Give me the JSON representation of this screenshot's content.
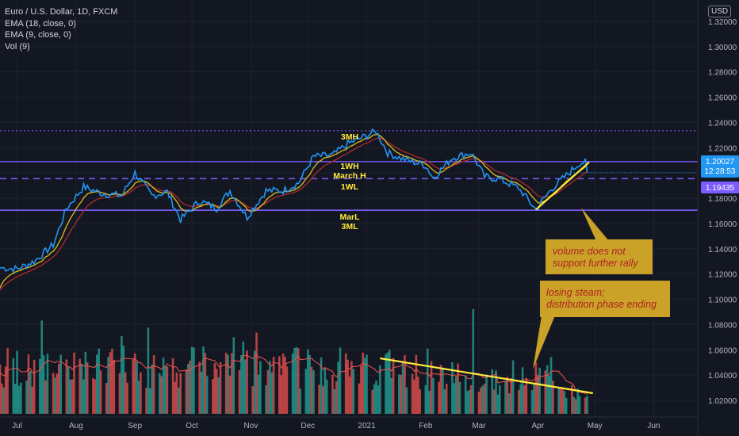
{
  "legend": {
    "symbol": "Euro / U.S. Dollar, 1D, FXCM",
    "ema18": "EMA (18, close, 0)",
    "ema9": "EMA (9, close, 0)",
    "vol": "Vol (9)"
  },
  "currency_button": "USD",
  "price_badges": {
    "last_price": "1.20027",
    "countdown": "12:28:53",
    "level": "1.19435"
  },
  "annotations": {
    "m3h": "3MH",
    "w1h": "1WH",
    "march_h": "March H",
    "w1l": "1WL",
    "marl": "MarL",
    "m3l": "3ML"
  },
  "callouts": {
    "volume": [
      "volume does not",
      "support further rally"
    ],
    "steam": [
      "losing steam;",
      "distribution phase ending"
    ]
  },
  "colors": {
    "background": "#131722",
    "price_line": "#2196f3",
    "ema9": "#d4b21e",
    "ema18": "#a52a2a",
    "level_line": "#7b5cff",
    "trend_line": "#ffeb3b",
    "annotation_text": "#ffeb3b",
    "callout_box": "#c9a227",
    "callout_text": "#b22222",
    "vol_up": "#26a69a",
    "vol_down": "#ef5350"
  },
  "chart_data": {
    "type": "line",
    "yticks": [
      "1.32000",
      "1.30000",
      "1.28000",
      "1.26000",
      "1.24000",
      "1.22000",
      "1.20000",
      "1.18000",
      "1.16000",
      "1.14000",
      "1.12000",
      "1.10000",
      "1.08000",
      "1.06000",
      "1.04000",
      "1.02000"
    ],
    "xticks": [
      "Jul",
      "Aug",
      "Sep",
      "Oct",
      "Nov",
      "Dec",
      "2021",
      "Feb",
      "Mar",
      "Apr",
      "May",
      "Jun"
    ],
    "ylim": [
      1.012,
      1.327
    ],
    "series": [
      {
        "name": "",
        "values": [
          [
            "2020-06-22",
            1.125
          ],
          [
            "2020-07-01",
            1.124
          ],
          [
            "2020-07-10",
            1.13
          ],
          [
            "2020-07-20",
            1.143
          ],
          [
            "2020-07-27",
            1.172
          ],
          [
            "2020-08-05",
            1.189
          ],
          [
            "2020-08-14",
            1.184
          ],
          [
            "2020-08-25",
            1.182
          ],
          [
            "2020-09-01",
            1.2
          ],
          [
            "2020-09-10",
            1.182
          ],
          [
            "2020-09-18",
            1.185
          ],
          [
            "2020-09-25",
            1.163
          ],
          [
            "2020-10-05",
            1.178
          ],
          [
            "2020-10-14",
            1.172
          ],
          [
            "2020-10-21",
            1.186
          ],
          [
            "2020-10-30",
            1.165
          ],
          [
            "2020-11-09",
            1.186
          ],
          [
            "2020-11-18",
            1.186
          ],
          [
            "2020-11-26",
            1.192
          ],
          [
            "2020-12-04",
            1.213
          ],
          [
            "2020-12-14",
            1.214
          ],
          [
            "2020-12-22",
            1.223
          ],
          [
            "2021-01-06",
            1.233
          ],
          [
            "2021-01-12",
            1.216
          ],
          [
            "2021-01-20",
            1.211
          ],
          [
            "2021-02-01",
            1.206
          ],
          [
            "2021-02-05",
            1.196
          ],
          [
            "2021-02-15",
            1.212
          ],
          [
            "2021-02-25",
            1.216
          ],
          [
            "2021-03-04",
            1.197
          ],
          [
            "2021-03-12",
            1.195
          ],
          [
            "2021-03-22",
            1.188
          ],
          [
            "2021-03-31",
            1.171
          ],
          [
            "2021-04-08",
            1.187
          ],
          [
            "2021-04-16",
            1.198
          ],
          [
            "2021-04-23",
            1.208
          ],
          [
            "2021-04-26",
            1.2085
          ],
          [
            "2021-04-27",
            1.2003
          ]
        ]
      }
    ],
    "horizontal_levels": [
      1.2335,
      1.209,
      1.1955,
      1.1705
    ],
    "trend_line": [
      [
        "2021-03-31",
        1.171
      ],
      [
        "2021-04-28",
        1.2085
      ]
    ]
  }
}
